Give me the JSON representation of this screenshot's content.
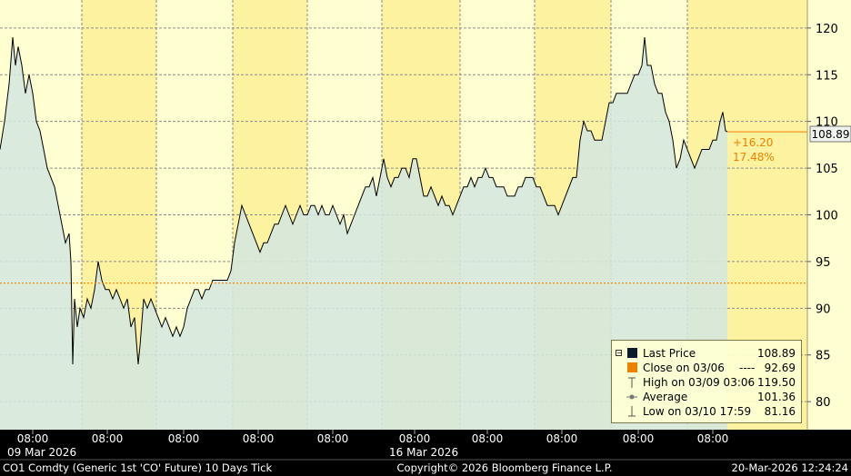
{
  "chart_data": {
    "type": "area",
    "ylim": [
      77,
      123
    ],
    "yticks": [
      80,
      85,
      90,
      95,
      100,
      105,
      110,
      115,
      120
    ],
    "x_tick_labels": [
      "08:00",
      "08:00",
      "08:00",
      "08:00",
      "08:00",
      "08:00",
      "08:00",
      "08:00",
      "08:00",
      "08:00"
    ],
    "x_date_labels": [
      "09 Mar 2026",
      "16 Mar 2026"
    ],
    "series": [
      {
        "name": "Last Price",
        "color": "#d3e8e0",
        "points": [
          [
            0,
            107
          ],
          [
            5,
            110
          ],
          [
            10,
            114
          ],
          [
            14,
            119
          ],
          [
            17,
            116
          ],
          [
            20,
            118
          ],
          [
            24,
            116
          ],
          [
            28,
            113
          ],
          [
            32,
            115
          ],
          [
            36,
            113
          ],
          [
            40,
            110
          ],
          [
            44,
            109
          ],
          [
            48,
            107
          ],
          [
            52,
            105
          ],
          [
            56,
            104
          ],
          [
            60,
            103
          ],
          [
            64,
            101
          ],
          [
            68,
            99
          ],
          [
            72,
            97
          ],
          [
            76,
            98
          ],
          [
            78,
            95
          ],
          [
            80,
            84
          ],
          [
            82,
            91
          ],
          [
            85,
            88
          ],
          [
            88,
            90
          ],
          [
            92,
            89
          ],
          [
            96,
            91
          ],
          [
            100,
            90
          ],
          [
            104,
            92
          ],
          [
            108,
            95
          ],
          [
            112,
            93
          ],
          [
            116,
            92
          ],
          [
            120,
            92
          ],
          [
            124,
            91
          ],
          [
            128,
            92
          ],
          [
            132,
            91
          ],
          [
            136,
            90
          ],
          [
            140,
            91
          ],
          [
            144,
            88
          ],
          [
            148,
            89
          ],
          [
            152,
            84
          ],
          [
            154,
            86
          ],
          [
            158,
            91
          ],
          [
            162,
            90
          ],
          [
            166,
            91
          ],
          [
            170,
            90
          ],
          [
            174,
            89
          ],
          [
            178,
            88
          ],
          [
            182,
            89
          ],
          [
            186,
            88
          ],
          [
            190,
            87
          ],
          [
            194,
            88
          ],
          [
            198,
            87
          ],
          [
            202,
            88
          ],
          [
            206,
            90
          ],
          [
            210,
            91
          ],
          [
            214,
            92
          ],
          [
            218,
            92
          ],
          [
            222,
            91
          ],
          [
            226,
            92
          ],
          [
            230,
            92
          ],
          [
            234,
            93
          ],
          [
            238,
            93
          ],
          [
            242,
            93
          ],
          [
            246,
            93
          ],
          [
            250,
            93
          ],
          [
            254,
            94
          ],
          [
            258,
            97
          ],
          [
            262,
            99
          ],
          [
            266,
            101
          ],
          [
            270,
            100
          ],
          [
            274,
            99
          ],
          [
            278,
            98
          ],
          [
            282,
            97
          ],
          [
            286,
            96
          ],
          [
            290,
            97
          ],
          [
            294,
            97
          ],
          [
            298,
            98
          ],
          [
            302,
            99
          ],
          [
            306,
            99
          ],
          [
            310,
            100
          ],
          [
            314,
            101
          ],
          [
            318,
            100
          ],
          [
            322,
            99
          ],
          [
            326,
            100
          ],
          [
            330,
            101
          ],
          [
            334,
            100
          ],
          [
            338,
            100
          ],
          [
            342,
            101
          ],
          [
            346,
            101
          ],
          [
            350,
            100
          ],
          [
            354,
            101
          ],
          [
            358,
            100
          ],
          [
            362,
            100
          ],
          [
            366,
            101
          ],
          [
            370,
            100
          ],
          [
            374,
            99
          ],
          [
            378,
            100
          ],
          [
            382,
            98
          ],
          [
            386,
            99
          ],
          [
            390,
            100
          ],
          [
            394,
            101
          ],
          [
            398,
            102
          ],
          [
            402,
            103
          ],
          [
            406,
            103
          ],
          [
            410,
            104
          ],
          [
            414,
            102
          ],
          [
            418,
            104
          ],
          [
            422,
            106
          ],
          [
            426,
            104
          ],
          [
            430,
            103
          ],
          [
            434,
            104
          ],
          [
            438,
            104
          ],
          [
            442,
            105
          ],
          [
            446,
            105
          ],
          [
            450,
            104
          ],
          [
            454,
            106
          ],
          [
            458,
            106
          ],
          [
            462,
            104
          ],
          [
            466,
            102
          ],
          [
            470,
            102
          ],
          [
            474,
            103
          ],
          [
            478,
            102
          ],
          [
            482,
            101
          ],
          [
            486,
            102
          ],
          [
            490,
            101
          ],
          [
            494,
            101
          ],
          [
            498,
            100
          ],
          [
            502,
            101
          ],
          [
            506,
            102
          ],
          [
            510,
            103
          ],
          [
            514,
            103
          ],
          [
            518,
            104
          ],
          [
            522,
            103
          ],
          [
            526,
            104
          ],
          [
            530,
            104
          ],
          [
            534,
            105
          ],
          [
            538,
            104
          ],
          [
            542,
            104
          ],
          [
            546,
            103
          ],
          [
            550,
            103
          ],
          [
            554,
            103
          ],
          [
            558,
            102
          ],
          [
            562,
            102
          ],
          [
            566,
            102
          ],
          [
            570,
            103
          ],
          [
            574,
            103
          ],
          [
            578,
            104
          ],
          [
            582,
            104
          ],
          [
            586,
            104
          ],
          [
            590,
            103
          ],
          [
            594,
            103
          ],
          [
            598,
            102
          ],
          [
            602,
            101
          ],
          [
            606,
            101
          ],
          [
            610,
            101
          ],
          [
            614,
            100
          ],
          [
            618,
            101
          ],
          [
            622,
            102
          ],
          [
            626,
            103
          ],
          [
            630,
            104
          ],
          [
            634,
            104
          ],
          [
            638,
            108
          ],
          [
            642,
            110
          ],
          [
            646,
            109
          ],
          [
            650,
            109
          ],
          [
            654,
            108
          ],
          [
            658,
            108
          ],
          [
            662,
            108
          ],
          [
            666,
            110
          ],
          [
            670,
            112
          ],
          [
            674,
            112
          ],
          [
            678,
            113
          ],
          [
            682,
            113
          ],
          [
            686,
            113
          ],
          [
            690,
            113
          ],
          [
            694,
            114
          ],
          [
            698,
            115
          ],
          [
            702,
            115
          ],
          [
            706,
            116
          ],
          [
            709,
            119
          ],
          [
            712,
            116
          ],
          [
            716,
            116
          ],
          [
            720,
            114
          ],
          [
            724,
            113
          ],
          [
            728,
            113
          ],
          [
            732,
            111
          ],
          [
            736,
            110
          ],
          [
            740,
            108
          ],
          [
            744,
            105
          ],
          [
            748,
            106
          ],
          [
            752,
            108
          ],
          [
            756,
            107
          ],
          [
            760,
            106
          ],
          [
            764,
            105
          ],
          [
            768,
            106
          ],
          [
            772,
            107
          ],
          [
            776,
            107
          ],
          [
            780,
            107
          ],
          [
            784,
            108
          ],
          [
            788,
            108
          ],
          [
            792,
            110
          ],
          [
            795,
            111
          ],
          [
            798,
            109
          ],
          [
            800,
            108.89
          ]
        ]
      }
    ],
    "reference_close": 92.69,
    "last_price": 108.89,
    "change_abs": "+16.20",
    "change_pct": "17.48%"
  },
  "last_price_bubble": "108.89",
  "legend": {
    "rows": [
      {
        "label": "Last Price",
        "value": "108.89"
      },
      {
        "label": "Close on 03/06",
        "dashes": "----",
        "value": "92.69"
      },
      {
        "label": "High on 03/09 03:06",
        "value": "119.50"
      },
      {
        "label": "Average",
        "value": "101.36"
      },
      {
        "label": "Low on 03/10 17:59",
        "value": "81.16"
      }
    ]
  },
  "footer": {
    "left": "CO1 Comdty (Generic 1st 'CO' Future) 10 Days Tick",
    "center": "Copyright© 2026 Bloomberg Finance L.P.",
    "right": "20-Mar-2026 12:24:24"
  },
  "colors": {
    "session_light": "#ffffd2",
    "session_dark": "#fdf2a0",
    "area_fill": "#d3e8e0",
    "line": "#000000",
    "close_line": "#f08000",
    "grid": "#8c8c8c"
  }
}
